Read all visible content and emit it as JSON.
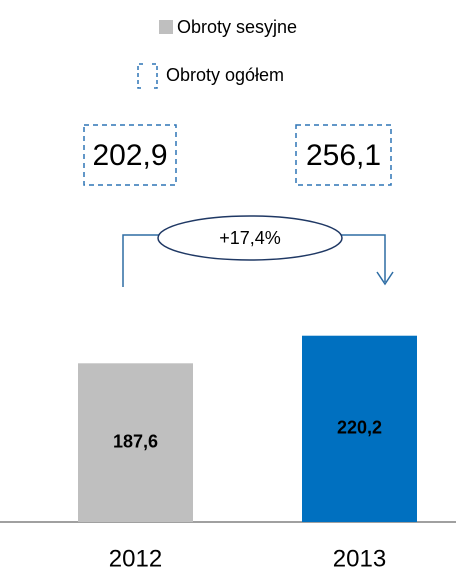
{
  "chart_data": {
    "type": "bar",
    "categories": [
      "2012",
      "2013"
    ],
    "series": [
      {
        "name": "Obroty sesyjne",
        "color": "#bfbfbf",
        "colors": [
          "#bfbfbf",
          "#0070c0"
        ],
        "values": [
          187.6,
          220.2
        ],
        "value_labels": [
          "187,6",
          "220,2"
        ]
      },
      {
        "name": "Obroty ogółem",
        "color": "#2e75b6",
        "values": [
          202.9,
          256.1
        ],
        "value_labels": [
          "202,9",
          "256,1"
        ]
      }
    ],
    "annotation": "+17,4%"
  }
}
